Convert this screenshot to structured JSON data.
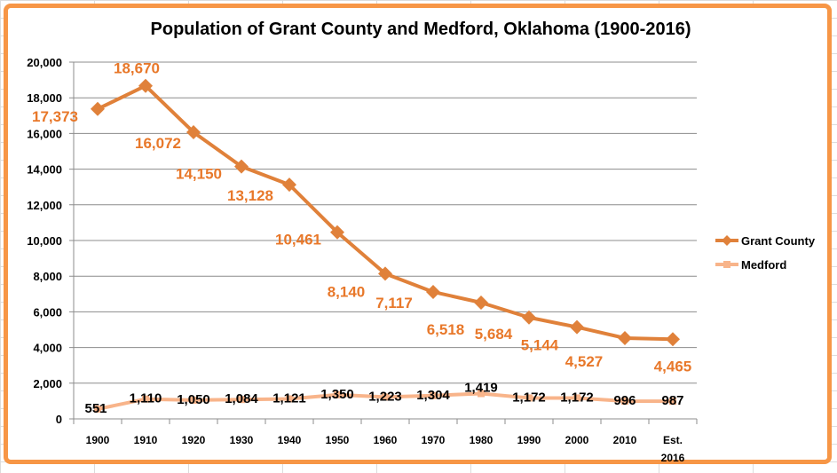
{
  "chart_data": {
    "type": "line",
    "title": "Population of Grant County and Medford, Oklahoma (1900-2016)",
    "categories": [
      "1900",
      "1910",
      "1920",
      "1930",
      "1940",
      "1950",
      "1960",
      "1970",
      "1980",
      "1990",
      "2000",
      "2010",
      "Est. 2016"
    ],
    "ylim": [
      0,
      20000
    ],
    "yticks": [
      0,
      2000,
      4000,
      6000,
      8000,
      10000,
      12000,
      14000,
      16000,
      18000,
      20000
    ],
    "ytick_labels": [
      "0",
      "2,000",
      "4,000",
      "6,000",
      "8,000",
      "10,000",
      "12,000",
      "14,000",
      "16,000",
      "18,000",
      "20,000"
    ],
    "grid": true,
    "legend_placement": "right",
    "series": [
      {
        "name": "Grant County",
        "color": "#E0813A",
        "label_color": "#E8782A",
        "marker": "diamond",
        "values": [
          17373,
          18670,
          16072,
          14150,
          13128,
          10461,
          8140,
          7117,
          6518,
          5684,
          5144,
          4527,
          4465
        ],
        "labels": [
          "17,373",
          "18,670",
          "16,072",
          "14,150",
          "13,128",
          "10,461",
          "8,140",
          "7,117",
          "6,518",
          "5,684",
          "5,144",
          "4,527",
          "4,465"
        ]
      },
      {
        "name": "Medford",
        "color": "#F8B48A",
        "label_color": "#000000",
        "marker": "square",
        "values": [
          551,
          1110,
          1050,
          1084,
          1121,
          1350,
          1223,
          1304,
          1419,
          1172,
          1172,
          996,
          987
        ],
        "labels": [
          "551",
          "1,110",
          "1,050",
          "1,084",
          "1,121",
          "1,350",
          "1,223",
          "1,304",
          "1,419",
          "1,172",
          "1,172",
          "996",
          "987"
        ]
      }
    ]
  }
}
